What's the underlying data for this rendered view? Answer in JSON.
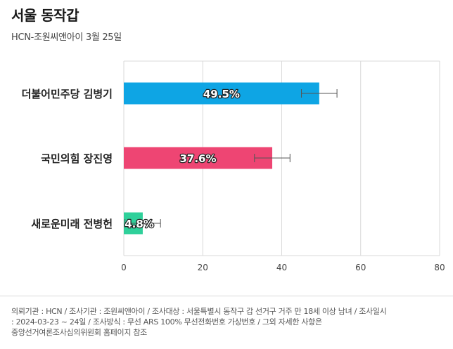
{
  "header": {
    "title": "서울 동작갑",
    "subtitle": "HCN-조원씨앤아이 3월 25일"
  },
  "colors": {
    "bar1": "#0ea5e4",
    "bar2": "#ee4573",
    "bar3": "#2fd09a",
    "grid": "#d9d9d9",
    "errorbar": "#555555"
  },
  "chart_data": {
    "type": "bar",
    "orientation": "horizontal",
    "categories": [
      "더불어민주당 김병기",
      "국민의힘 장진영",
      "새로운미래 전병헌"
    ],
    "values": [
      49.5,
      37.6,
      4.8
    ],
    "value_labels": [
      "49.5%",
      "37.6%",
      "4.8%"
    ],
    "error_margin": 4.5,
    "xlim": [
      0,
      80
    ],
    "x_ticks": [
      "0",
      "20",
      "40",
      "60",
      "80"
    ],
    "grid": true
  },
  "footnote": {
    "line1": "의뢰기관 : HCN / 조사기관 : 조원씨앤아이 / 조사대상 : 서울특별시 동작구 갑 선거구 거주 만 18세 이상 남녀 / 조사일시",
    "line2": ": 2024-03-23 ~ 24일 / 조사방식 : 무선 ARS 100% 무선전화번호 가상번호 / 그외 자세한 사항은",
    "line3": "중앙선거여론조사심의위원회 홈페이지 참조"
  }
}
